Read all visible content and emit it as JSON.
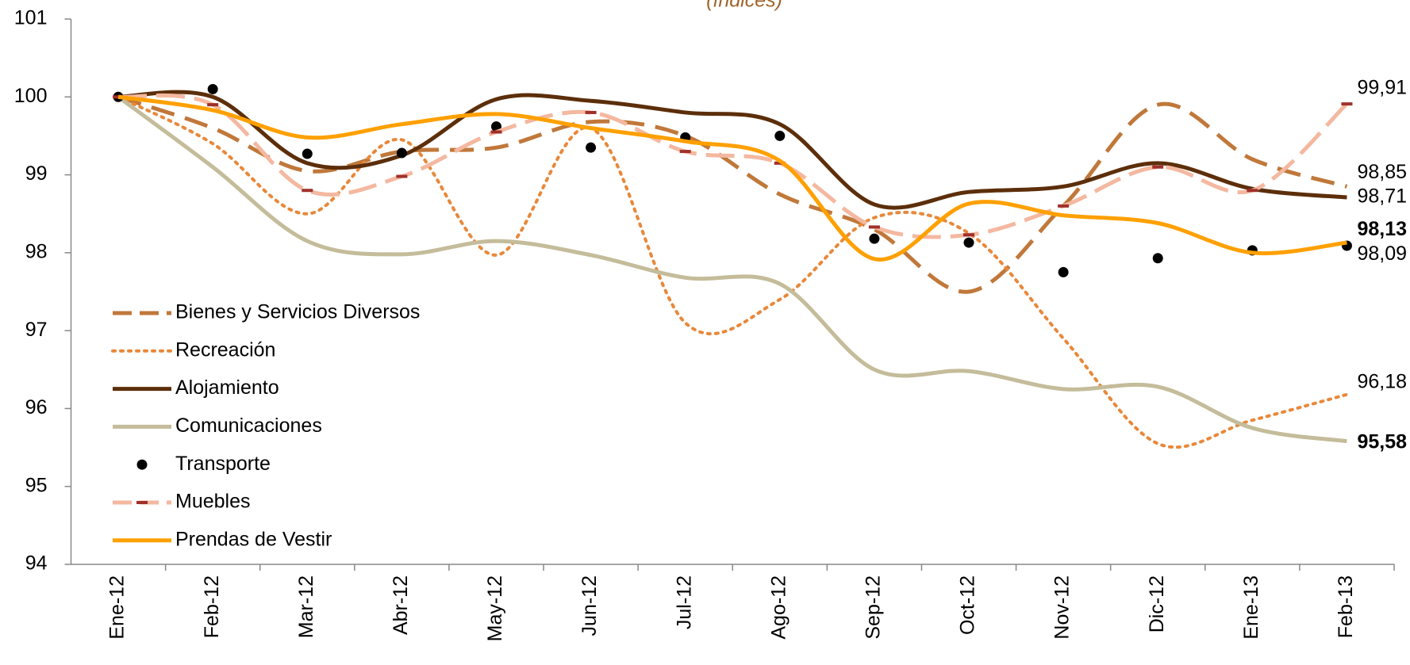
{
  "chart_data": {
    "type": "line",
    "subtitle": "(índices)",
    "categories": [
      "Ene-12",
      "Feb-12",
      "Mar-12",
      "Abr-12",
      "May-12",
      "Jun-12",
      "Jul-12",
      "Ago-12",
      "Sep-12",
      "Oct-12",
      "Nov-12",
      "Dic-12",
      "Ene-13",
      "Feb-13"
    ],
    "ylim": [
      94,
      101
    ],
    "yticks": [
      94,
      95,
      96,
      97,
      98,
      99,
      100,
      101
    ],
    "series": [
      {
        "name": "Bienes y Servicios Diversos",
        "color": "#c0783a",
        "style": "dash",
        "values": [
          100,
          99.6,
          99.05,
          99.3,
          99.35,
          99.68,
          99.5,
          98.75,
          98.3,
          97.5,
          98.6,
          99.9,
          99.2,
          98.85
        ],
        "value_labels": [
          null,
          null,
          null,
          null,
          null,
          null,
          null,
          null,
          null,
          null,
          null,
          null,
          null,
          "98,85"
        ],
        "label_color": "#000000",
        "label_bold": false
      },
      {
        "name": "Recreación",
        "color": "#e8883a",
        "style": "dot",
        "values": [
          100,
          99.4,
          98.5,
          99.45,
          97.97,
          99.6,
          97.1,
          97.4,
          98.45,
          98.25,
          96.9,
          95.55,
          95.85,
          96.18
        ],
        "value_labels": [
          null,
          null,
          null,
          null,
          null,
          null,
          null,
          null,
          null,
          null,
          null,
          null,
          null,
          "96,18"
        ],
        "label_color": "#e07b20",
        "label_bold": false
      },
      {
        "name": "Alojamiento",
        "color": "#5c2e0a",
        "style": "solid",
        "values": [
          100,
          100.0,
          99.15,
          99.25,
          99.97,
          99.95,
          99.8,
          99.65,
          98.62,
          98.78,
          98.85,
          99.15,
          98.82,
          98.71
        ],
        "value_labels": [
          null,
          null,
          null,
          null,
          null,
          null,
          null,
          null,
          null,
          null,
          null,
          null,
          null,
          "98,71"
        ],
        "label_color": "#000000",
        "label_bold": false
      },
      {
        "name": "Comunicaciones",
        "color": "#c4bc9a",
        "style": "solid",
        "values": [
          100,
          99.1,
          98.15,
          97.98,
          98.15,
          97.97,
          97.68,
          97.6,
          96.5,
          96.48,
          96.25,
          96.28,
          95.75,
          95.58
        ],
        "value_labels": [
          null,
          null,
          null,
          null,
          null,
          null,
          null,
          null,
          null,
          null,
          null,
          null,
          null,
          "95,58"
        ],
        "label_color": "#77933c",
        "label_bold": true
      },
      {
        "name": "Transporte",
        "color": "#000000",
        "style": "none",
        "marker": "circle",
        "values": [
          100,
          100.1,
          99.27,
          99.28,
          99.62,
          99.35,
          99.48,
          99.5,
          98.18,
          98.13,
          97.75,
          97.93,
          98.03,
          98.09
        ],
        "value_labels": [
          null,
          null,
          null,
          null,
          null,
          null,
          null,
          null,
          null,
          null,
          null,
          null,
          null,
          "98,09"
        ],
        "label_color": "#000000",
        "label_bold": false
      },
      {
        "name": "Muebles",
        "color": "#f4b8a0",
        "style": "longdash",
        "marker": "dash",
        "marker_color": "#a0302a",
        "values": [
          100,
          99.9,
          98.8,
          98.98,
          99.55,
          99.8,
          99.3,
          99.15,
          98.33,
          98.23,
          98.6,
          99.1,
          98.8,
          99.91
        ],
        "value_labels": [
          null,
          null,
          null,
          null,
          null,
          null,
          null,
          null,
          null,
          null,
          null,
          null,
          null,
          "99,91"
        ],
        "label_color": "#e07b20",
        "label_bold": false
      },
      {
        "name": "Prendas de Vestir",
        "color": "#ffa000",
        "style": "solid",
        "values": [
          100,
          99.83,
          99.48,
          99.65,
          99.78,
          99.6,
          99.43,
          99.18,
          97.92,
          98.63,
          98.48,
          98.38,
          98.0,
          98.13
        ],
        "value_labels": [
          null,
          null,
          null,
          null,
          null,
          null,
          null,
          null,
          null,
          null,
          null,
          null,
          null,
          "98,13"
        ],
        "label_color": "#ffa000",
        "label_bold": true
      }
    ]
  }
}
